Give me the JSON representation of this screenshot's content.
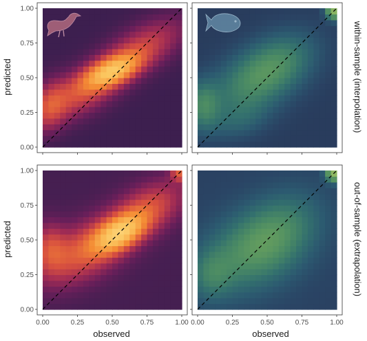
{
  "chart_data": {
    "type": "heatmap",
    "layout": {
      "rows": 2,
      "cols": 2
    },
    "xlabel": "observed",
    "ylabel": "predicted",
    "xlim": [
      0,
      1
    ],
    "ylim": [
      0,
      1
    ],
    "x_ticks": [
      "0.00",
      "0.25",
      "0.50",
      "0.75",
      "1.00"
    ],
    "y_ticks": [
      "0.00",
      "0.25",
      "0.50",
      "0.75",
      "1.00"
    ],
    "reference_line": {
      "style": "dashed",
      "slope": 1,
      "intercept": 0
    },
    "column_icons": [
      "bird-silhouette",
      "fish-silhouette"
    ],
    "row_labels": [
      "within-sample (interpolation)",
      "out-of-sample (extrapolation)"
    ],
    "colormaps": {
      "col1": [
        "#241b3a",
        "#3b1f4f",
        "#6a1f5a",
        "#a22c54",
        "#d8503f",
        "#f48b34",
        "#fbc55e",
        "#fff0b0"
      ],
      "col2": [
        "#283253",
        "#2a4565",
        "#2c5a70",
        "#33706e",
        "#4a8a64",
        "#6fa55c",
        "#a3c267",
        "#e6e08a"
      ]
    },
    "panels": [
      {
        "row": 0,
        "col": 0,
        "colormap": "col1",
        "background": 0.1,
        "density_peaks": [
          {
            "x": 0.5,
            "y": 0.55,
            "sx": 0.13,
            "sy": 0.08,
            "rho": 0.55,
            "w": 0.85
          },
          {
            "x": 0.28,
            "y": 0.4,
            "sx": 0.2,
            "sy": 0.14,
            "rho": 0.6,
            "w": 0.4
          },
          {
            "x": 0.72,
            "y": 0.72,
            "sx": 0.2,
            "sy": 0.14,
            "rho": 0.6,
            "w": 0.35
          },
          {
            "x": 0.05,
            "y": 0.3,
            "sx": 0.08,
            "sy": 0.12,
            "rho": 0.2,
            "w": 0.3
          }
        ]
      },
      {
        "row": 0,
        "col": 1,
        "colormap": "col2",
        "background": 0.05,
        "density_peaks": [
          {
            "x": 0.42,
            "y": 0.48,
            "sx": 0.22,
            "sy": 0.16,
            "rho": 0.4,
            "w": 0.45
          },
          {
            "x": 0.6,
            "y": 0.65,
            "sx": 0.18,
            "sy": 0.14,
            "rho": 0.3,
            "w": 0.25
          },
          {
            "x": 0.04,
            "y": 0.3,
            "sx": 0.08,
            "sy": 0.12,
            "rho": 0.0,
            "w": 0.4
          },
          {
            "x": 0.98,
            "y": 0.98,
            "sx": 0.04,
            "sy": 0.04,
            "rho": 0.0,
            "w": 0.9
          },
          {
            "x": 0.3,
            "y": 0.2,
            "sx": 0.15,
            "sy": 0.1,
            "rho": 0.3,
            "w": 0.18
          }
        ]
      },
      {
        "row": 1,
        "col": 0,
        "colormap": "col1",
        "background": 0.12,
        "density_peaks": [
          {
            "x": 0.55,
            "y": 0.55,
            "sx": 0.12,
            "sy": 0.09,
            "rho": 0.5,
            "w": 0.9
          },
          {
            "x": 0.3,
            "y": 0.42,
            "sx": 0.22,
            "sy": 0.16,
            "rho": 0.5,
            "w": 0.45
          },
          {
            "x": 0.75,
            "y": 0.72,
            "sx": 0.18,
            "sy": 0.14,
            "rho": 0.5,
            "w": 0.4
          },
          {
            "x": 0.05,
            "y": 0.45,
            "sx": 0.08,
            "sy": 0.12,
            "rho": 0.0,
            "w": 0.3
          },
          {
            "x": 0.98,
            "y": 0.98,
            "sx": 0.04,
            "sy": 0.04,
            "rho": 0.0,
            "w": 0.4
          }
        ]
      },
      {
        "row": 1,
        "col": 1,
        "colormap": "col2",
        "background": 0.08,
        "density_peaks": [
          {
            "x": 0.4,
            "y": 0.42,
            "sx": 0.25,
            "sy": 0.2,
            "rho": 0.3,
            "w": 0.45
          },
          {
            "x": 0.6,
            "y": 0.6,
            "sx": 0.2,
            "sy": 0.18,
            "rho": 0.3,
            "w": 0.25
          },
          {
            "x": 0.98,
            "y": 0.98,
            "sx": 0.04,
            "sy": 0.04,
            "rho": 0.0,
            "w": 0.9
          },
          {
            "x": 0.1,
            "y": 0.25,
            "sx": 0.1,
            "sy": 0.12,
            "rho": 0.0,
            "w": 0.25
          }
        ]
      }
    ]
  }
}
